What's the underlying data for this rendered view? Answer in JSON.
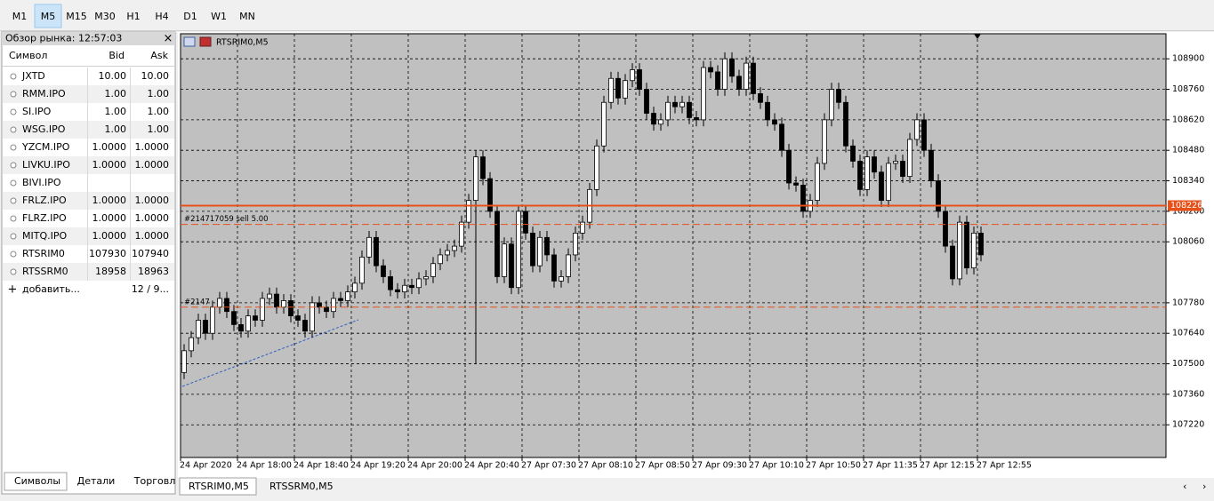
{
  "toolbar": {
    "timeframes": [
      "M1",
      "M5",
      "M15",
      "M30",
      "H1",
      "H4",
      "D1",
      "W1",
      "MN"
    ],
    "active": 1
  },
  "market_watch": {
    "title": "Обзор рынка: 12:57:03",
    "close": "×",
    "columns": [
      "Символ",
      "Bid",
      "Ask"
    ],
    "rows": [
      {
        "symbol": "JXTD",
        "bid": "10.00",
        "ask": "10.00"
      },
      {
        "symbol": "RMM.IPO",
        "bid": "1.00",
        "ask": "1.00"
      },
      {
        "symbol": "SI.IPO",
        "bid": "1.00",
        "ask": "1.00"
      },
      {
        "symbol": "WSG.IPO",
        "bid": "1.00",
        "ask": "1.00"
      },
      {
        "symbol": "YZCM.IPO",
        "bid": "1.0000",
        "ask": "1.0000"
      },
      {
        "symbol": "LIVKU.IPO",
        "bid": "1.0000",
        "ask": "1.0000"
      },
      {
        "symbol": "BIVI.IPO",
        "bid": null,
        "ask": null
      },
      {
        "symbol": "FRLZ.IPO",
        "bid": "1.0000",
        "ask": "1.0000"
      },
      {
        "symbol": "FLRZ.IPO",
        "bid": "1.0000",
        "ask": "1.0000"
      },
      {
        "symbol": "MITQ.IPO",
        "bid": "1.0000",
        "ask": "1.0000"
      },
      {
        "symbol": "RTSRIM0",
        "bid": "107930",
        "ask": "107940",
        "bid_color": "#2020c8",
        "ask_color": "#2020c8"
      },
      {
        "symbol": "RTSSRM0",
        "bid": "18958",
        "ask": "18963",
        "bid_color": "#e01818",
        "ask_color": "#2020c8"
      }
    ],
    "add": "добавить...",
    "count": "12 / 9...",
    "tabs": [
      "Символы",
      "Детали",
      "Торговл"
    ],
    "active_tab": 0
  },
  "chart_tabs": [
    "RTSRIM0,M5",
    "RTSSRM0,M5"
  ],
  "chart_data": {
    "type": "candlestick",
    "title": "RTSRIM0,M5",
    "categories": [
      "24 Apr 2020",
      null,
      null,
      null,
      null,
      null,
      null,
      null,
      "24 Apr 18:00",
      null,
      null,
      null,
      null,
      null,
      null,
      null,
      "24 Apr 18:40",
      null,
      null,
      null,
      null,
      null,
      null,
      null,
      "24 Apr 19:20",
      null,
      null,
      null,
      null,
      null,
      null,
      null,
      "24 Apr 20:00",
      null,
      null,
      null,
      null,
      null,
      null,
      null,
      "24 Apr 20:40",
      null,
      null,
      null,
      null,
      null,
      null,
      null,
      "27 Apr 07:30",
      null,
      null,
      null,
      null,
      null,
      null,
      null,
      "27 Apr 08:10",
      null,
      null,
      null,
      null,
      null,
      null,
      null,
      "27 Apr 08:50",
      null,
      null,
      null,
      null,
      null,
      null,
      null,
      "27 Apr 09:30",
      null,
      null,
      null,
      null,
      null,
      null,
      null,
      "27 Apr 10:10",
      null,
      null,
      null,
      null,
      null,
      null,
      null,
      "27 Apr 10:50",
      null,
      null,
      null,
      null,
      null,
      null,
      null,
      "27 Apr 11:35",
      null,
      null,
      null,
      null,
      null,
      null,
      null,
      "27 Apr 12:15",
      null,
      null,
      null,
      null,
      null,
      null,
      null,
      "27 Apr 12:55"
    ],
    "candles": {
      "open": [
        107460,
        107560,
        107620,
        107700,
        107640,
        107760,
        107800,
        107740,
        107680,
        107650,
        107720,
        107700,
        107800,
        107820,
        107760,
        107790,
        107720,
        107700,
        107650,
        107780,
        107760,
        107740,
        107800,
        107790,
        107830,
        107870,
        107990,
        108080,
        107950,
        107900,
        107840,
        107830,
        107860,
        107850,
        107890,
        107900,
        107960,
        108000,
        108020,
        108040,
        108150,
        108250,
        108450,
        108350,
        108200,
        107900,
        108050,
        107850,
        108200,
        108100,
        107950,
        108080,
        108000,
        107880,
        107900,
        108000,
        108100,
        108150,
        108300,
        108500,
        108700,
        108810,
        108720,
        108800,
        108850,
        108760,
        108650,
        108600,
        108620,
        108700,
        108680,
        108700,
        108630,
        108620,
        108860,
        108840,
        108760,
        108900,
        108820,
        108760,
        108880,
        108740,
        108700,
        108620,
        108600,
        108480,
        108330,
        108320,
        108200,
        108250,
        108420,
        108620,
        108760,
        108700,
        108500,
        108430,
        108300,
        108450,
        108380,
        108250,
        108420,
        108430,
        108360,
        108530,
        108620,
        108480,
        108340,
        108200,
        108040,
        107890,
        108150,
        107940,
        108100
      ],
      "high": [
        107590,
        107650,
        107730,
        107730,
        107790,
        107830,
        107830,
        107770,
        107710,
        107750,
        107750,
        107830,
        107850,
        107850,
        107820,
        107820,
        107750,
        107730,
        107810,
        107810,
        107790,
        107830,
        107830,
        107860,
        107900,
        108020,
        108110,
        108110,
        107980,
        107930,
        107870,
        107890,
        107890,
        107920,
        107930,
        107990,
        108030,
        108050,
        108070,
        108180,
        108280,
        108480,
        108480,
        108380,
        108230,
        108080,
        108080,
        108230,
        108230,
        108130,
        108110,
        108110,
        108030,
        107930,
        108030,
        108130,
        108180,
        108330,
        108530,
        108730,
        108840,
        108840,
        108830,
        108880,
        108880,
        108790,
        108680,
        108650,
        108730,
        108730,
        108730,
        108730,
        108660,
        108890,
        108890,
        108870,
        108930,
        108930,
        108850,
        108910,
        108910,
        108770,
        108730,
        108650,
        108630,
        108510,
        108360,
        108350,
        108280,
        108450,
        108650,
        108790,
        108790,
        108730,
        108530,
        108460,
        108480,
        108480,
        108410,
        108450,
        108460,
        108460,
        108560,
        108650,
        108650,
        108510,
        108370,
        108230,
        108070,
        108180,
        108180,
        108130,
        108130
      ],
      "low": [
        107430,
        107530,
        107590,
        107610,
        107610,
        107730,
        107710,
        107650,
        107620,
        107620,
        107670,
        107670,
        107770,
        107730,
        107730,
        107690,
        107670,
        107620,
        107620,
        107730,
        107710,
        107710,
        107760,
        107760,
        107800,
        107840,
        107960,
        107920,
        107870,
        107810,
        107800,
        107800,
        107820,
        107820,
        107860,
        107870,
        107930,
        107970,
        107990,
        108010,
        108120,
        107500,
        108320,
        108170,
        107870,
        107870,
        107820,
        107820,
        108070,
        107920,
        107920,
        107970,
        107850,
        107850,
        107870,
        107970,
        108070,
        108120,
        108270,
        108470,
        108670,
        108690,
        108690,
        108770,
        108730,
        108620,
        108570,
        108570,
        108590,
        108650,
        108650,
        108600,
        108590,
        108590,
        108810,
        108730,
        108730,
        108790,
        108730,
        108730,
        108710,
        108670,
        108590,
        108570,
        108450,
        108300,
        108290,
        108170,
        108170,
        108220,
        108390,
        108590,
        108670,
        108470,
        108400,
        108270,
        108270,
        108350,
        108220,
        108220,
        108390,
        108330,
        108330,
        108500,
        108450,
        108310,
        108170,
        108010,
        107860,
        107860,
        107910,
        107910,
        107970
      ],
      "close": [
        107560,
        107620,
        107700,
        107640,
        107760,
        107800,
        107740,
        107680,
        107650,
        107720,
        107700,
        107800,
        107820,
        107760,
        107790,
        107720,
        107700,
        107650,
        107780,
        107760,
        107740,
        107800,
        107790,
        107830,
        107870,
        107990,
        108080,
        107950,
        107900,
        107840,
        107830,
        107860,
        107850,
        107890,
        107900,
        107960,
        108000,
        108020,
        108040,
        108150,
        108250,
        108450,
        108350,
        108200,
        107900,
        108050,
        107850,
        108200,
        108100,
        107950,
        108080,
        108000,
        107880,
        107900,
        108000,
        108100,
        108150,
        108300,
        108500,
        108700,
        108810,
        108720,
        108800,
        108850,
        108760,
        108650,
        108600,
        108620,
        108700,
        108680,
        108700,
        108630,
        108620,
        108860,
        108840,
        108760,
        108900,
        108820,
        108760,
        108880,
        108740,
        108700,
        108620,
        108600,
        108480,
        108330,
        108320,
        108200,
        108250,
        108420,
        108620,
        108760,
        108700,
        108500,
        108430,
        108300,
        108450,
        108380,
        108250,
        108420,
        108430,
        108360,
        108530,
        108620,
        108480,
        108340,
        108200,
        108040,
        107890,
        108150,
        107940,
        108100,
        108000
      ]
    },
    "ylim": [
      107070,
      109015
    ],
    "yticks": [
      108900,
      108760,
      108620,
      108480,
      108340,
      108200,
      108060,
      107780,
      107640,
      107500,
      107360,
      107220
    ],
    "grid": true,
    "current_price": 108226,
    "price_color": "#e8501a",
    "order_lines": [
      {
        "label": "#214717059 sell 5.00",
        "price": 108140
      },
      {
        "label": "#2147",
        "price": 107760
      }
    ]
  }
}
